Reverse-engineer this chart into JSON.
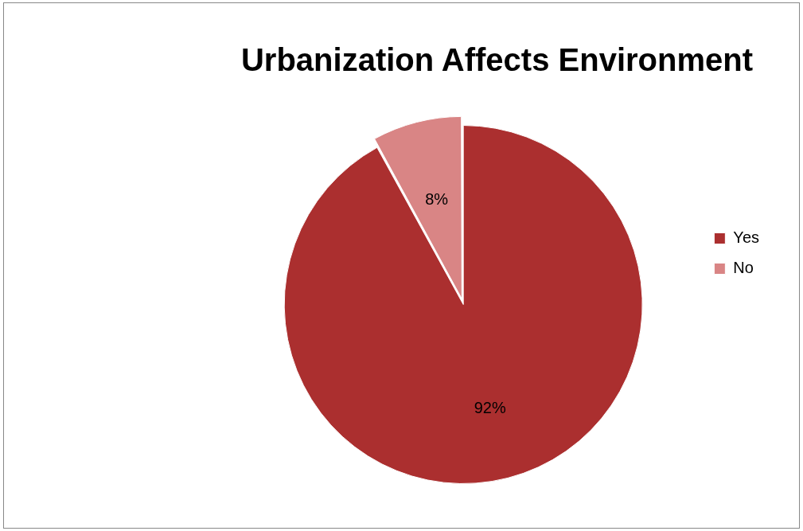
{
  "chart_data": {
    "type": "pie",
    "title": "Urbanization Affects Environment",
    "categories": [
      "Yes",
      "No"
    ],
    "values": [
      92,
      8
    ],
    "colors": [
      "#ab2f2f",
      "#d98585"
    ],
    "value_labels": [
      "92%",
      "8%"
    ],
    "legend": "right"
  }
}
